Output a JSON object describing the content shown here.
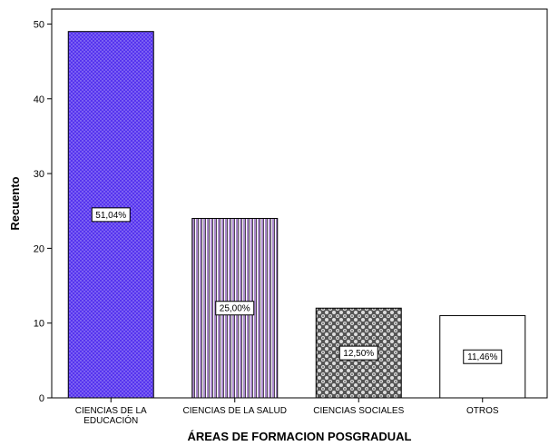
{
  "chart_data": {
    "type": "bar",
    "categories": [
      [
        "CIENCIAS DE LA",
        "EDUCACIÓN"
      ],
      [
        "CIENCIAS DE LA SALUD"
      ],
      [
        "CIENCIAS SOCIALES"
      ],
      [
        "OTROS"
      ]
    ],
    "values": [
      49,
      24,
      12,
      11
    ],
    "data_labels": [
      "51,04%",
      "25,00%",
      "12,50%",
      "11,46%"
    ],
    "xlabel": "ÁREAS DE FORMACION POSGRADUAL",
    "ylabel": "Recuento",
    "ylim": [
      0,
      52
    ],
    "yticks": [
      0,
      10,
      20,
      30,
      40,
      50
    ],
    "grid": false,
    "legend": "none",
    "colors": {
      "bar_fills": [
        "#5533ee",
        "#aa88cc",
        "#555555",
        "#ffffff"
      ],
      "bar_patterns": [
        "dots",
        "vertical-lines",
        "crosshatch",
        "none"
      ],
      "stroke": "#000000"
    }
  }
}
